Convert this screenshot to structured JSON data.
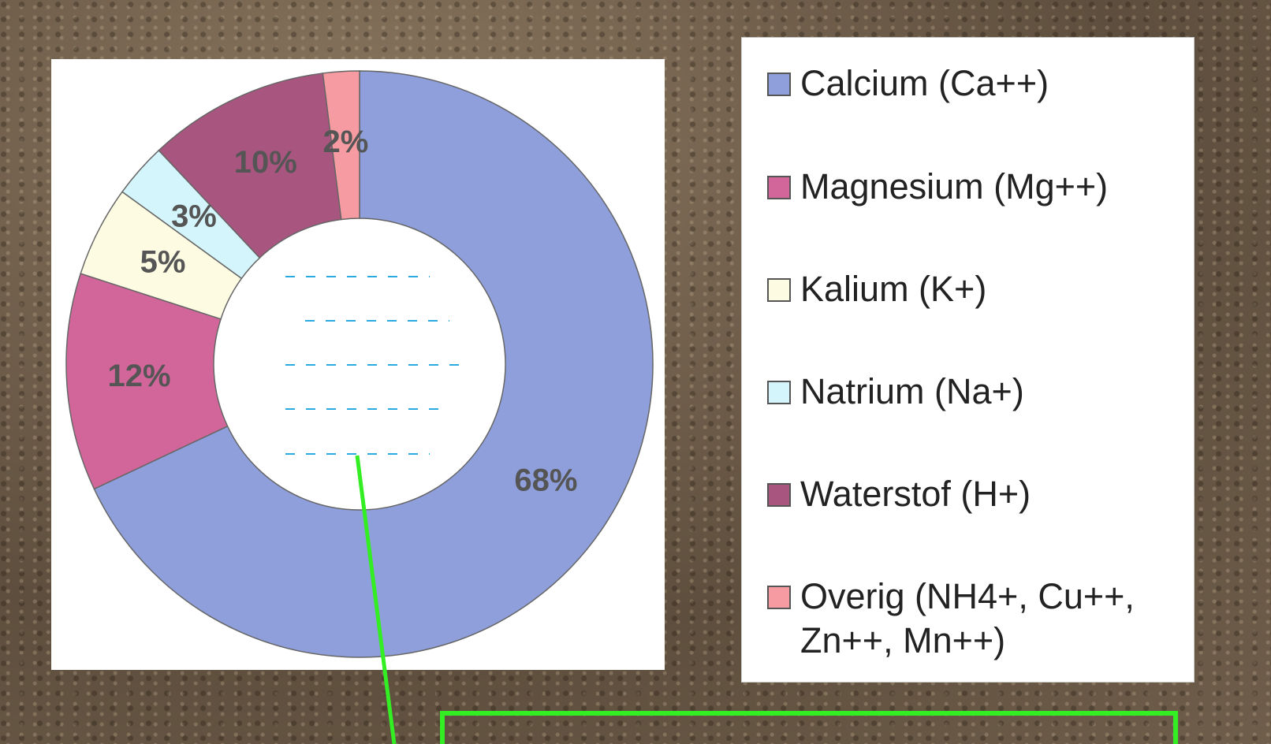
{
  "chart_data": {
    "type": "pie",
    "categories": [
      "Calcium (Ca++)",
      "Magnesium (Mg++)",
      "Kalium (K+)",
      "Natrium (Na+)",
      "Waterstof (H+)",
      "Overig (NH4+, Cu++, Zn++, Mn++)"
    ],
    "values": [
      68,
      12,
      5,
      3,
      10,
      2
    ],
    "value_labels": [
      "68%",
      "12%",
      "5%",
      "3%",
      "10%",
      "2%"
    ],
    "colors": [
      "#8e9fdc",
      "#d2669a",
      "#fdfbe2",
      "#d4f5fb",
      "#a8557f",
      "#f79ba2"
    ]
  }
}
